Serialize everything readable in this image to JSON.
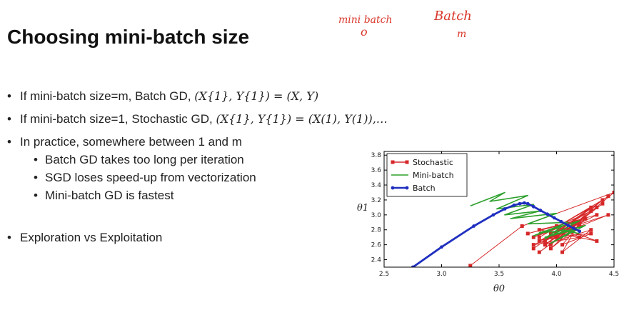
{
  "slide": {
    "title": "Choosing mini-batch size",
    "annotations": {
      "left_top": "mini batch",
      "left_bottom": "o",
      "right_top": "Batch",
      "right_bottom": "m"
    },
    "bullets": [
      {
        "prefix": "If mini-batch size=m, Batch GD,",
        "math": "(X{1}, Y{1}) = (X, Y)"
      },
      {
        "prefix": "If mini-batch size=1, Stochastic GD,",
        "math": "(X{1}, Y{1}) = (X(1), Y(1)),…"
      },
      {
        "text": "In practice, somewhere between 1 and m"
      },
      {
        "text": "Batch GD takes too long per iteration"
      },
      {
        "text": "SGD loses speed-up from vectorization"
      },
      {
        "text": "Mini-batch GD is fastest"
      },
      {
        "text": "Exploration vs Exploitation"
      }
    ]
  },
  "chart_data": {
    "type": "line",
    "xlabel": "θ0",
    "ylabel": "θ1",
    "xlim": [
      2.5,
      4.5
    ],
    "ylim": [
      2.3,
      3.85
    ],
    "xticks": [
      2.5,
      3.0,
      3.5,
      4.0,
      4.5
    ],
    "yticks": [
      2.4,
      2.6,
      2.8,
      3.0,
      3.2,
      3.4,
      3.6,
      3.8
    ],
    "legend": "top-left",
    "series": [
      {
        "name": "Stochastic",
        "color": "#d62728",
        "marker": "square",
        "x": [
          3.25,
          3.7,
          4.5,
          3.95,
          4.4,
          3.85,
          4.3,
          3.8,
          4.45,
          3.9,
          4.35,
          3.75,
          4.25,
          3.85,
          4.4,
          3.9,
          4.15,
          3.8,
          4.3,
          3.95,
          4.2,
          3.85,
          4.35,
          4.0,
          4.25,
          3.9,
          4.3,
          4.05,
          4.2,
          3.95,
          4.45,
          3.8,
          4.2,
          4.0,
          4.35,
          3.85,
          4.25,
          4.05,
          4.3,
          3.95,
          4.15
        ],
        "y": [
          2.32,
          2.85,
          3.3,
          2.6,
          3.2,
          2.7,
          3.1,
          2.55,
          3.25,
          2.65,
          3.0,
          2.75,
          2.95,
          2.5,
          3.15,
          2.6,
          2.9,
          2.7,
          3.05,
          2.55,
          2.85,
          2.65,
          3.1,
          2.7,
          2.95,
          2.6,
          2.8,
          2.5,
          2.9,
          2.75,
          3.0,
          2.6,
          2.7,
          2.85,
          2.65,
          2.8,
          2.95,
          2.6,
          2.75,
          2.7,
          2.8
        ]
      },
      {
        "name": "Mini-batch",
        "color": "#2ca02c",
        "marker": "none",
        "x": [
          3.25,
          3.55,
          3.42,
          3.75,
          3.48,
          3.8,
          3.55,
          3.85,
          3.6,
          4.0,
          3.75,
          4.1,
          3.8,
          4.05,
          3.9,
          4.2,
          3.85,
          4.15,
          3.95,
          4.25,
          3.9,
          4.1,
          4.2
        ],
        "y": [
          3.12,
          3.3,
          3.18,
          3.26,
          3.08,
          3.14,
          3.0,
          3.05,
          2.95,
          3.02,
          2.88,
          2.9,
          2.72,
          2.85,
          2.68,
          2.92,
          2.76,
          2.8,
          2.62,
          2.86,
          2.7,
          2.78,
          2.75
        ]
      },
      {
        "name": "Batch",
        "color": "#1f2fbf",
        "marker": "circle",
        "x": [
          2.75,
          3.0,
          3.28,
          3.45,
          3.55,
          3.63,
          3.68,
          3.72,
          3.75,
          3.8,
          3.86,
          3.92,
          3.98,
          4.04,
          4.1,
          4.15,
          4.2
        ],
        "y": [
          2.3,
          2.57,
          2.85,
          3.0,
          3.08,
          3.13,
          3.15,
          3.16,
          3.15,
          3.11,
          3.06,
          3.01,
          2.96,
          2.91,
          2.86,
          2.82,
          2.78
        ]
      }
    ]
  }
}
